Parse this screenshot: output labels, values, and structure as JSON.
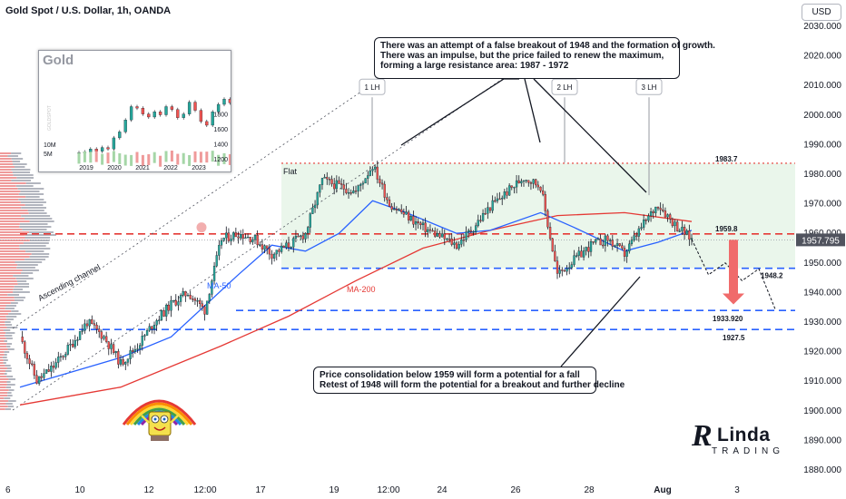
{
  "header": {
    "title": "Gold Spot / U.S. Dollar, 1h, OANDA",
    "currency": "USD"
  },
  "annotations": {
    "top_callout": [
      "There was an attempt of a false breakout of 1948 and the formation of growth.",
      "There was an impulse, but the price failed to renew the maximum,",
      "forming a large resistance area: 1987 - 1972"
    ],
    "bottom_callout": [
      "Price consolidation below 1959 will form a potential for a fall",
      "Retest of 1948 will form the potential for a breakout and further decline"
    ],
    "lh1": "1 LH",
    "lh2": "2 LH",
    "lh3": "3 LH",
    "flat": "Flat",
    "channel": "Ascending channel",
    "ma50": "MA-50",
    "ma200": "MA-200"
  },
  "levels": [
    {
      "value": 1983.7,
      "label": "1983.7",
      "color": "#e53935",
      "style": "dotted"
    },
    {
      "value": 1959.8,
      "label": "1959.8",
      "color": "#e53935",
      "style": "dashed"
    },
    {
      "value": 1948.2,
      "label": "1948.2",
      "color": "#2962ff",
      "style": "dashed"
    },
    {
      "value": 1933.92,
      "label": "1933.920",
      "color": "#2962ff",
      "style": "dashed"
    },
    {
      "value": 1927.5,
      "label": "1927.5",
      "color": "#2962ff",
      "style": "dashed"
    }
  ],
  "current_price": {
    "value": 1957.795,
    "label": "1957.795"
  },
  "inset": {
    "title": "Gold",
    "y_ticks": [
      "1800",
      "1600",
      "1400",
      "1200"
    ],
    "vol_ticks": [
      "10M",
      "5M"
    ],
    "x_ticks": [
      "2019",
      "2020",
      "2021",
      "2022",
      "2023"
    ],
    "watermark": "GOLDSPOT"
  },
  "logo": {
    "r": "R",
    "linda": "Linda",
    "trading": "TRADING"
  },
  "colors": {
    "up": "#26a69a",
    "down": "#ef5350",
    "candle": "#131722",
    "ma50": "#2962ff",
    "ma200": "#e53935",
    "flat_zone": "#e8f5e9",
    "arrow": "#f06b6b"
  },
  "chart_data": {
    "type": "candlestick",
    "title": "Gold Spot / U.S. Dollar, 1h, OANDA",
    "ylim": [
      1880,
      2030
    ],
    "y_ticks": [
      1880,
      1890,
      1900,
      1910,
      1920,
      1930,
      1940,
      1950,
      1960,
      1970,
      1980,
      1990,
      2000,
      2010,
      2020,
      2030
    ],
    "y_tick_labels": [
      "1880.000",
      "1890.000",
      "1900.000",
      "1910.000",
      "1920.000",
      "1930.000",
      "1940.000",
      "1950.000",
      "1960.000",
      "1970.000",
      "1980.000",
      "1990.000",
      "2000.000",
      "2010.000",
      "2020.000",
      "2030.000"
    ],
    "x_tick_labels": [
      "6",
      "10",
      "12",
      "12:00",
      "17",
      "19",
      "12:00",
      "24",
      "26",
      "28",
      "Aug",
      "3"
    ],
    "price_path": [
      {
        "t": 0,
        "p": 1925
      },
      {
        "t": 1,
        "p": 1910
      },
      {
        "t": 2,
        "p": 1915
      },
      {
        "t": 3,
        "p": 1922
      },
      {
        "t": 4,
        "p": 1930
      },
      {
        "t": 5,
        "p": 1925
      },
      {
        "t": 6,
        "p": 1916
      },
      {
        "t": 7,
        "p": 1922
      },
      {
        "t": 8,
        "p": 1930
      },
      {
        "t": 9,
        "p": 1936
      },
      {
        "t": 10,
        "p": 1940
      },
      {
        "t": 11,
        "p": 1934
      },
      {
        "t": 12,
        "p": 1958
      },
      {
        "t": 13,
        "p": 1960
      },
      {
        "t": 14,
        "p": 1958
      },
      {
        "t": 15,
        "p": 1953
      },
      {
        "t": 16,
        "p": 1956
      },
      {
        "t": 17,
        "p": 1960
      },
      {
        "t": 18,
        "p": 1978
      },
      {
        "t": 19,
        "p": 1976
      },
      {
        "t": 20,
        "p": 1974
      },
      {
        "t": 21,
        "p": 1983
      },
      {
        "t": 22,
        "p": 1970
      },
      {
        "t": 23,
        "p": 1966
      },
      {
        "t": 24,
        "p": 1962
      },
      {
        "t": 25,
        "p": 1959
      },
      {
        "t": 26,
        "p": 1956
      },
      {
        "t": 27,
        "p": 1962
      },
      {
        "t": 28,
        "p": 1969
      },
      {
        "t": 29,
        "p": 1974
      },
      {
        "t": 30,
        "p": 1979
      },
      {
        "t": 31,
        "p": 1976
      },
      {
        "t": 32,
        "p": 1946
      },
      {
        "t": 33,
        "p": 1951
      },
      {
        "t": 34,
        "p": 1956
      },
      {
        "t": 35,
        "p": 1958
      },
      {
        "t": 36,
        "p": 1953
      },
      {
        "t": 37,
        "p": 1962
      },
      {
        "t": 38,
        "p": 1970
      },
      {
        "t": 39,
        "p": 1963
      },
      {
        "t": 40,
        "p": 1958
      }
    ],
    "projection": [
      {
        "t": 40,
        "p": 1958
      },
      {
        "t": 41,
        "p": 1946
      },
      {
        "t": 42,
        "p": 1950
      },
      {
        "t": 43,
        "p": 1944
      },
      {
        "t": 44,
        "p": 1948
      },
      {
        "t": 45,
        "p": 1934
      }
    ],
    "ma50": [
      {
        "t": 0,
        "p": 1908
      },
      {
        "t": 6,
        "p": 1918
      },
      {
        "t": 9,
        "p": 1925
      },
      {
        "t": 13,
        "p": 1946
      },
      {
        "t": 15,
        "p": 1956
      },
      {
        "t": 17,
        "p": 1954
      },
      {
        "t": 19,
        "p": 1960
      },
      {
        "t": 21,
        "p": 1971
      },
      {
        "t": 23,
        "p": 1967
      },
      {
        "t": 26,
        "p": 1960
      },
      {
        "t": 28,
        "p": 1961
      },
      {
        "t": 31,
        "p": 1967
      },
      {
        "t": 33,
        "p": 1962
      },
      {
        "t": 36,
        "p": 1954
      },
      {
        "t": 38,
        "p": 1957
      },
      {
        "t": 40,
        "p": 1961
      }
    ],
    "ma200": [
      {
        "t": 0,
        "p": 1902
      },
      {
        "t": 6,
        "p": 1908
      },
      {
        "t": 12,
        "p": 1922
      },
      {
        "t": 16,
        "p": 1932
      },
      {
        "t": 20,
        "p": 1944
      },
      {
        "t": 24,
        "p": 1955
      },
      {
        "t": 28,
        "p": 1961
      },
      {
        "t": 32,
        "p": 1966
      },
      {
        "t": 36,
        "p": 1967
      },
      {
        "t": 40,
        "p": 1964
      }
    ]
  }
}
